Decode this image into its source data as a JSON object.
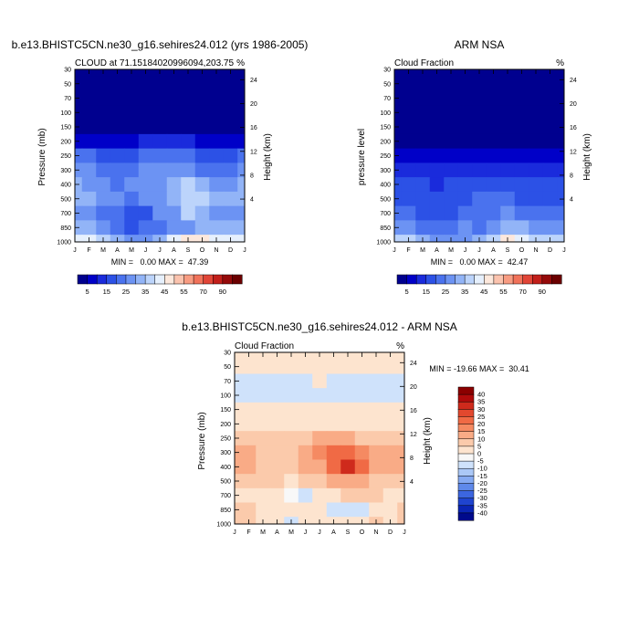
{
  "chart_data": [
    {
      "type": "heatmap",
      "title": "b.e13.BHISTC5CN.ne30_g16.sehires24.012 (yrs 1986-2005)",
      "subtitle": "CLOUD at 71.15184020996094,203.75",
      "units": "%",
      "xlabel": "",
      "ylabel": "Pressure (mb)",
      "ylabel_right": "Height (km)",
      "x_ticks": [
        "J",
        "F",
        "M",
        "A",
        "M",
        "J",
        "J",
        "A",
        "S",
        "O",
        "N",
        "D",
        "J"
      ],
      "y_ticks": [
        "30",
        "50",
        "70",
        "100",
        "150",
        "200",
        "250",
        "300",
        "400",
        "500",
        "700",
        "850",
        "1000"
      ],
      "y_ticks_right": [
        "24",
        "20",
        "16",
        "12",
        "8",
        "4"
      ],
      "stats": "MIN =   0.00 MAX =  47.39",
      "colorbar_labels": [
        "5",
        "15",
        "25",
        "35",
        "45",
        "55",
        "70",
        "90"
      ],
      "palette": [
        "#00008f",
        "#0000c8",
        "#1a2bdc",
        "#2c51e6",
        "#4a72ee",
        "#6c93f3",
        "#92b4f7",
        "#bcd4fb",
        "#e6f0fd",
        "#fde8dc",
        "#fbc3ae",
        "#f89c82",
        "#f1725a",
        "#e14537",
        "#c21f1a",
        "#950a0a",
        "#6b0000"
      ],
      "levels_pressure": [
        30,
        50,
        70,
        100,
        150,
        200,
        250,
        300,
        400,
        500,
        700,
        850,
        1000
      ],
      "values": [
        [
          0,
          0,
          0,
          0,
          0,
          0,
          0,
          0,
          0,
          0,
          0,
          0,
          0
        ],
        [
          0,
          0,
          0,
          0,
          0,
          0,
          0,
          0,
          0,
          0,
          0,
          0,
          0
        ],
        [
          0,
          0,
          0,
          0,
          0,
          0,
          0,
          0,
          0,
          0,
          0,
          0,
          0
        ],
        [
          1,
          1,
          1,
          1,
          1,
          1,
          1,
          1,
          1,
          1,
          1,
          1,
          1
        ],
        [
          1,
          1,
          1,
          1,
          1,
          1,
          1,
          1,
          1,
          1,
          1,
          1,
          1
        ],
        [
          4,
          4,
          3,
          3,
          4,
          5,
          6,
          6,
          5,
          4,
          3,
          3,
          4
        ],
        [
          15,
          15,
          12,
          11,
          13,
          15,
          16,
          16,
          15,
          14,
          12,
          13,
          15
        ],
        [
          20,
          20,
          17,
          16,
          18,
          20,
          22,
          22,
          21,
          19,
          18,
          18,
          20
        ],
        [
          25,
          24,
          20,
          19,
          20,
          24,
          22,
          28,
          30,
          25,
          22,
          22,
          25
        ],
        [
          27,
          26,
          22,
          20,
          18,
          20,
          21,
          28,
          34,
          30,
          25,
          25,
          27
        ],
        [
          22,
          22,
          18,
          17,
          12,
          14,
          20,
          22,
          30,
          28,
          23,
          22,
          22
        ],
        [
          26,
          26,
          22,
          18,
          14,
          16,
          18,
          20,
          22,
          25,
          26,
          26,
          26
        ],
        [
          35,
          35,
          30,
          25,
          22,
          24,
          28,
          36,
          44,
          40,
          38,
          35,
          35
        ]
      ]
    },
    {
      "type": "heatmap",
      "title": "ARM NSA",
      "subtitle": "Cloud Fraction",
      "units": "%",
      "xlabel": "",
      "ylabel": "pressure level",
      "ylabel_right": "Height (km)",
      "x_ticks": [
        "J",
        "F",
        "M",
        "A",
        "M",
        "J",
        "J",
        "A",
        "S",
        "O",
        "N",
        "D",
        "J"
      ],
      "y_ticks": [
        "30",
        "50",
        "70",
        "100",
        "150",
        "200",
        "250",
        "300",
        "400",
        "500",
        "700",
        "850",
        "1000"
      ],
      "y_ticks_right": [
        "24",
        "20",
        "16",
        "12",
        "8",
        "4"
      ],
      "stats": "MIN =   0.00 MAX =  42.47",
      "colorbar_labels": [
        "5",
        "15",
        "25",
        "35",
        "45",
        "55",
        "70",
        "90"
      ],
      "levels_pressure": [
        30,
        50,
        70,
        100,
        150,
        200,
        250,
        300,
        400,
        500,
        700,
        850,
        1000
      ],
      "values": [
        [
          0,
          0,
          0,
          0,
          0,
          0,
          0,
          0,
          0,
          0,
          0,
          0,
          0
        ],
        [
          0,
          0,
          0,
          0,
          0,
          0,
          0,
          0,
          0,
          0,
          0,
          0,
          0
        ],
        [
          0,
          0,
          0,
          0,
          0,
          0,
          0,
          0,
          0,
          0,
          0,
          0,
          0
        ],
        [
          0,
          0,
          0,
          0,
          0,
          0,
          0,
          0,
          0,
          0,
          0,
          0,
          0
        ],
        [
          1,
          1,
          1,
          1,
          1,
          1,
          1,
          1,
          1,
          1,
          1,
          1,
          1
        ],
        [
          2,
          2,
          2,
          2,
          2,
          2,
          2,
          2,
          2,
          2,
          2,
          2,
          2
        ],
        [
          4,
          4,
          3,
          3,
          3,
          4,
          4,
          4,
          4,
          4,
          4,
          4,
          4
        ],
        [
          7,
          7,
          6,
          5,
          6,
          7,
          8,
          8,
          7,
          7,
          6,
          6,
          7
        ],
        [
          12,
          11,
          10,
          9,
          10,
          12,
          13,
          14,
          13,
          12,
          11,
          11,
          12
        ],
        [
          14,
          14,
          12,
          11,
          12,
          14,
          15,
          16,
          15,
          14,
          13,
          13,
          14
        ],
        [
          18,
          18,
          14,
          12,
          14,
          17,
          16,
          18,
          20,
          18,
          16,
          16,
          18
        ],
        [
          22,
          22,
          18,
          15,
          16,
          20,
          18,
          24,
          28,
          26,
          22,
          22,
          22
        ],
        [
          30,
          30,
          26,
          22,
          20,
          22,
          26,
          32,
          42,
          38,
          32,
          30,
          30
        ]
      ]
    },
    {
      "type": "heatmap",
      "title": "b.e13.BHISTC5CN.ne30_g16.sehires24.012 - ARM NSA",
      "subtitle": "Cloud Fraction",
      "units": "%",
      "xlabel": "",
      "ylabel": "Pressure (mb)",
      "ylabel_right": "Height (km)",
      "x_ticks": [
        "J",
        "F",
        "M",
        "A",
        "M",
        "J",
        "J",
        "A",
        "S",
        "O",
        "N",
        "D",
        "J"
      ],
      "y_ticks": [
        "30",
        "50",
        "70",
        "100",
        "150",
        "200",
        "250",
        "300",
        "400",
        "500",
        "700",
        "850",
        "1000"
      ],
      "y_ticks_right": [
        "24",
        "20",
        "16",
        "12",
        "8",
        "4"
      ],
      "stats": "MIN = -19.66 MAX =  30.41",
      "colorbar_labels": [
        "40",
        "35",
        "30",
        "25",
        "20",
        "15",
        "10",
        "5",
        "0",
        "-5",
        "-10",
        "-15",
        "-20",
        "-25",
        "-30",
        "-35",
        "-40"
      ],
      "palette": [
        "#8b0000",
        "#b00b0b",
        "#cf2a1c",
        "#e2482e",
        "#f06a45",
        "#f58a62",
        "#f9ab86",
        "#fbcaab",
        "#fde4cf",
        "#f8f8f8",
        "#cfe2fb",
        "#abc8f7",
        "#86aaf2",
        "#5f89ea",
        "#3c66e0",
        "#1f44cf",
        "#0a25b4",
        "#000a8c"
      ],
      "levels_pressure": [
        30,
        50,
        70,
        100,
        150,
        200,
        250,
        300,
        400,
        500,
        700,
        850,
        1000
      ],
      "values": [
        [
          2,
          2,
          2,
          2,
          2,
          2,
          2,
          2,
          2,
          2,
          2,
          2,
          2
        ],
        [
          2,
          2,
          2,
          2,
          2,
          2,
          2,
          2,
          2,
          2,
          2,
          2,
          2
        ],
        [
          -2,
          -2,
          -2,
          -2,
          -2,
          -2,
          2,
          -2,
          -2,
          -2,
          -2,
          -2,
          -2
        ],
        [
          -2,
          -2,
          -2,
          -2,
          -2,
          -2,
          -2,
          -2,
          -2,
          -2,
          -2,
          -2,
          -2
        ],
        [
          2,
          2,
          2,
          2,
          2,
          2,
          2,
          2,
          2,
          2,
          2,
          2,
          2
        ],
        [
          2,
          2,
          2,
          2,
          2,
          2,
          2,
          2,
          2,
          2,
          2,
          2,
          2
        ],
        [
          8,
          8,
          6,
          5,
          6,
          8,
          12,
          14,
          12,
          9,
          7,
          7,
          8
        ],
        [
          10,
          10,
          8,
          7,
          9,
          13,
          18,
          22,
          22,
          16,
          11,
          10,
          10
        ],
        [
          10,
          10,
          9,
          8,
          7,
          10,
          13,
          20,
          30,
          22,
          12,
          10,
          10
        ],
        [
          8,
          8,
          6,
          5,
          4,
          6,
          7,
          10,
          12,
          10,
          8,
          8,
          8
        ],
        [
          4,
          4,
          2,
          3,
          0,
          -2,
          2,
          2,
          6,
          6,
          6,
          4,
          4
        ],
        [
          6,
          6,
          4,
          4,
          2,
          2,
          2,
          -2,
          -4,
          -2,
          4,
          4,
          6
        ],
        [
          8,
          8,
          4,
          2,
          -4,
          2,
          2,
          4,
          2,
          2,
          6,
          4,
          8
        ]
      ]
    }
  ]
}
